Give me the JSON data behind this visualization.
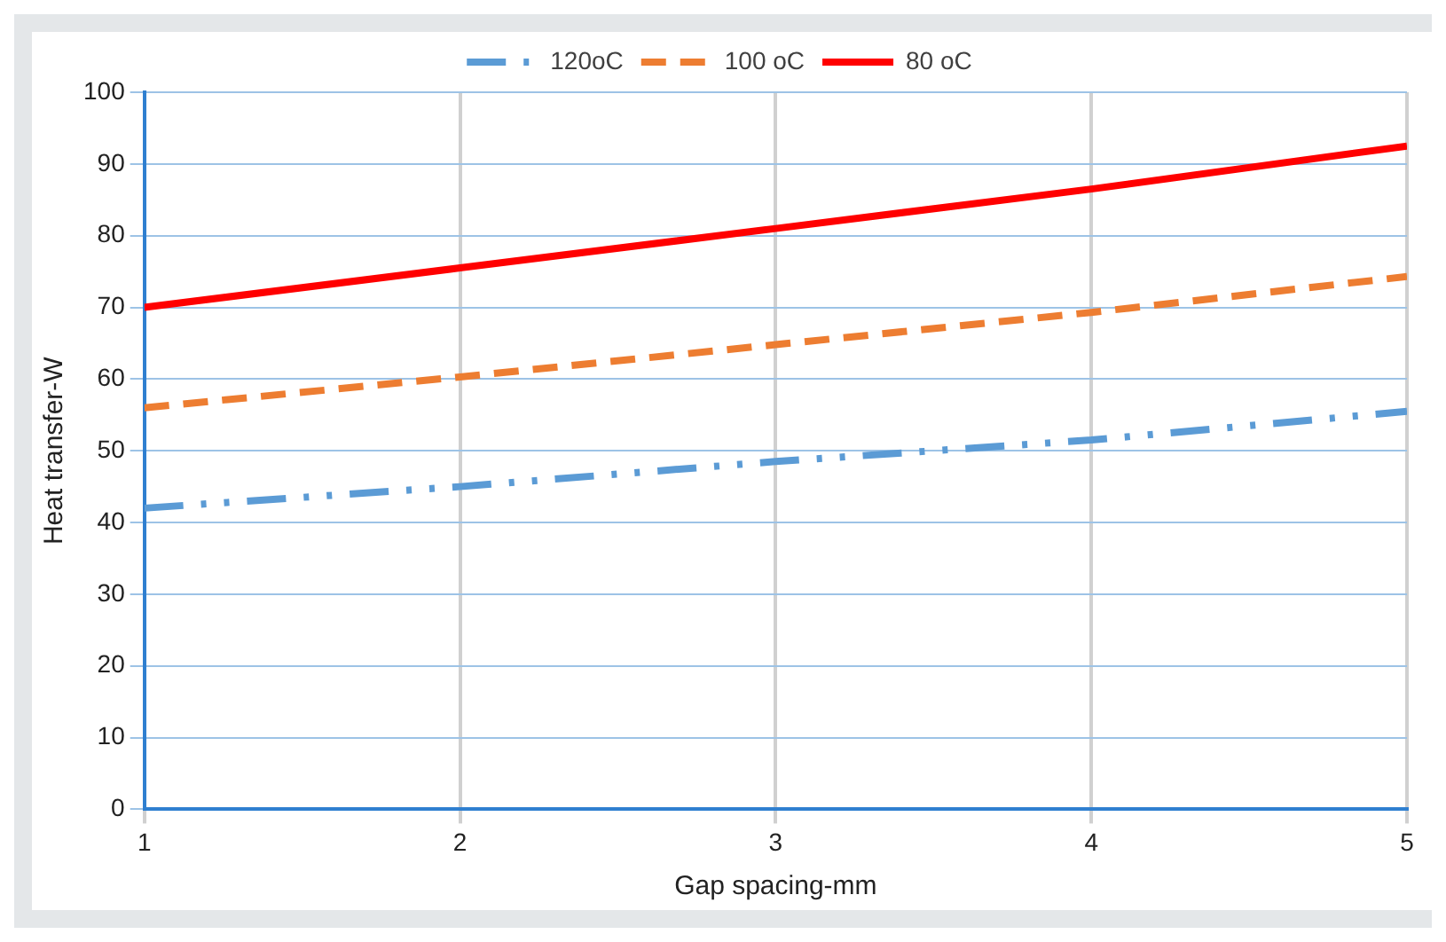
{
  "chart_data": {
    "type": "line",
    "xlabel": "Gap spacing-mm",
    "ylabel": "Heat transfer-W",
    "x": [
      1,
      2,
      3,
      4,
      5
    ],
    "series": [
      {
        "name": "120oC",
        "color": "#5b9bd5",
        "line_style": "dotted",
        "values": [
          42,
          45,
          48.5,
          51.5,
          55.5
        ]
      },
      {
        "name": "100 oC",
        "color": "#ed7d31",
        "line_style": "dashed",
        "values": [
          56,
          60.3,
          64.8,
          69.3,
          74.3
        ]
      },
      {
        "name": "80 oC",
        "color": "#ff0000",
        "line_style": "solid",
        "values": [
          70,
          75.5,
          81,
          86.5,
          92.5
        ]
      }
    ],
    "xlim": [
      1,
      5
    ],
    "xticks": [
      1,
      2,
      3,
      4,
      5
    ],
    "ylim": [
      0,
      100
    ],
    "yticks": [
      0,
      10,
      20,
      30,
      40,
      50,
      60,
      70,
      80,
      90,
      100
    ],
    "grid": true,
    "legend": "top",
    "marker": "none"
  }
}
